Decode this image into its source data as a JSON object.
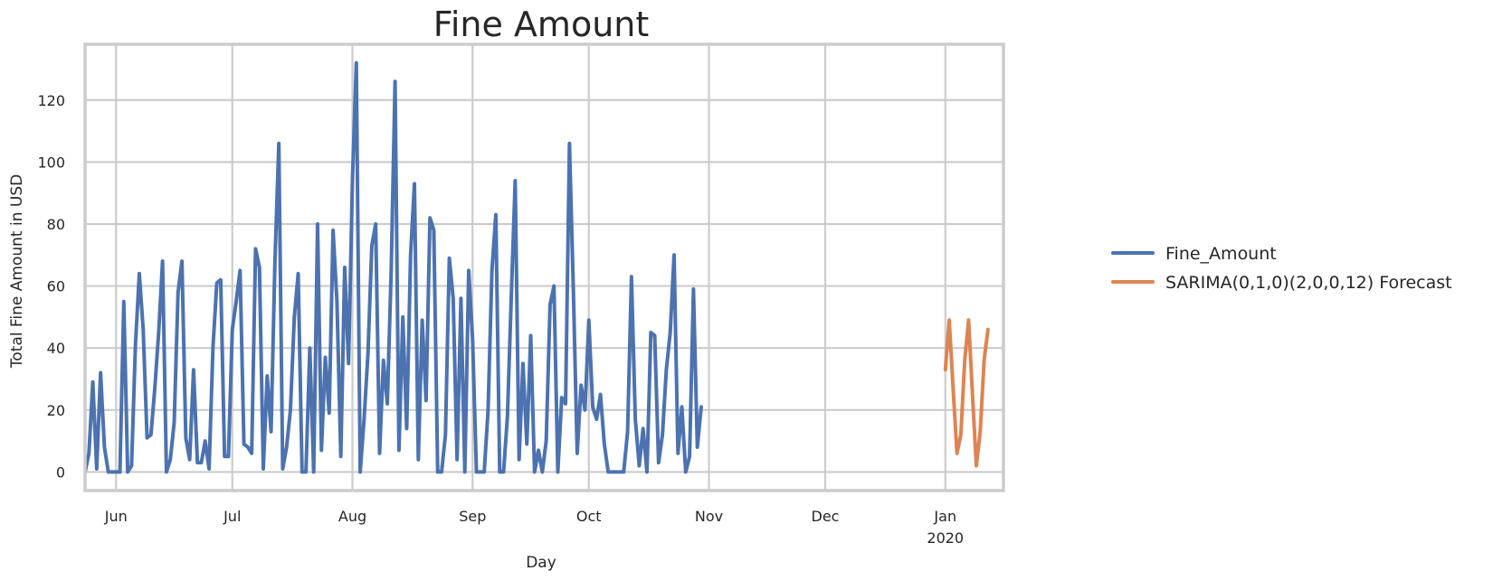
{
  "chart_data": {
    "type": "line",
    "title": "Fine Amount",
    "xlabel": "Day",
    "ylabel": "Total Fine Amount in USD",
    "xlim": [
      "2019-05-24",
      "2020-01-16"
    ],
    "ylim": [
      -6,
      138
    ],
    "grid": true,
    "legend_position": "right, outside plot",
    "x_ticks": [
      {
        "date": "2019-06-01",
        "label": "Jun"
      },
      {
        "date": "2019-07-01",
        "label": "Jul"
      },
      {
        "date": "2019-08-01",
        "label": "Aug"
      },
      {
        "date": "2019-09-01",
        "label": "Sep"
      },
      {
        "date": "2019-10-01",
        "label": "Oct"
      },
      {
        "date": "2019-11-01",
        "label": "Nov"
      },
      {
        "date": "2019-12-01",
        "label": "Dec"
      },
      {
        "date": "2020-01-01",
        "label": "Jan",
        "sublabel": "2020"
      }
    ],
    "y_ticks": [
      0,
      20,
      40,
      60,
      80,
      100,
      120
    ],
    "series": [
      {
        "name": "Fine_Amount",
        "color": "#4c72b0",
        "start_date": "2019-05-24",
        "values": [
          0,
          6,
          29,
          1,
          32,
          8,
          0,
          0,
          0,
          0,
          55,
          0,
          2,
          41,
          64,
          46,
          11,
          12,
          27,
          45,
          68,
          0,
          4,
          16,
          58,
          68,
          11,
          4,
          33,
          3,
          3,
          10,
          1,
          40,
          61,
          62,
          5,
          5,
          46,
          55,
          65,
          9,
          8,
          6,
          72,
          66,
          1,
          31,
          13,
          68,
          106,
          1,
          8,
          20,
          50,
          64,
          0,
          0,
          40,
          0,
          80,
          7,
          37,
          19,
          78,
          55,
          5,
          66,
          35,
          94,
          132,
          0,
          17,
          38,
          73,
          80,
          6,
          36,
          22,
          65,
          126,
          7,
          50,
          14,
          70,
          93,
          4,
          49,
          23,
          82,
          78,
          0,
          0,
          12,
          69,
          56,
          4,
          56,
          0,
          65,
          43,
          0,
          0,
          0,
          20,
          65,
          83,
          0,
          0,
          18,
          57,
          94,
          4,
          35,
          9,
          44,
          0,
          7,
          0,
          10,
          54,
          60,
          0,
          24,
          22,
          106,
          59,
          6,
          28,
          20,
          49,
          21,
          17,
          25,
          9,
          0,
          0,
          0,
          0,
          0,
          13,
          63,
          17,
          2,
          14,
          0,
          45,
          44,
          3,
          12,
          33,
          45,
          70,
          6,
          21,
          0,
          5,
          59,
          8,
          21
        ]
      },
      {
        "name": "SARIMA(0,1,0)(2,0,0,12) Forecast",
        "color": "#dd8452",
        "start_date": "2020-01-01",
        "values": [
          33,
          49,
          27,
          6,
          12,
          36,
          49,
          25,
          2,
          13,
          36,
          46
        ]
      }
    ]
  }
}
